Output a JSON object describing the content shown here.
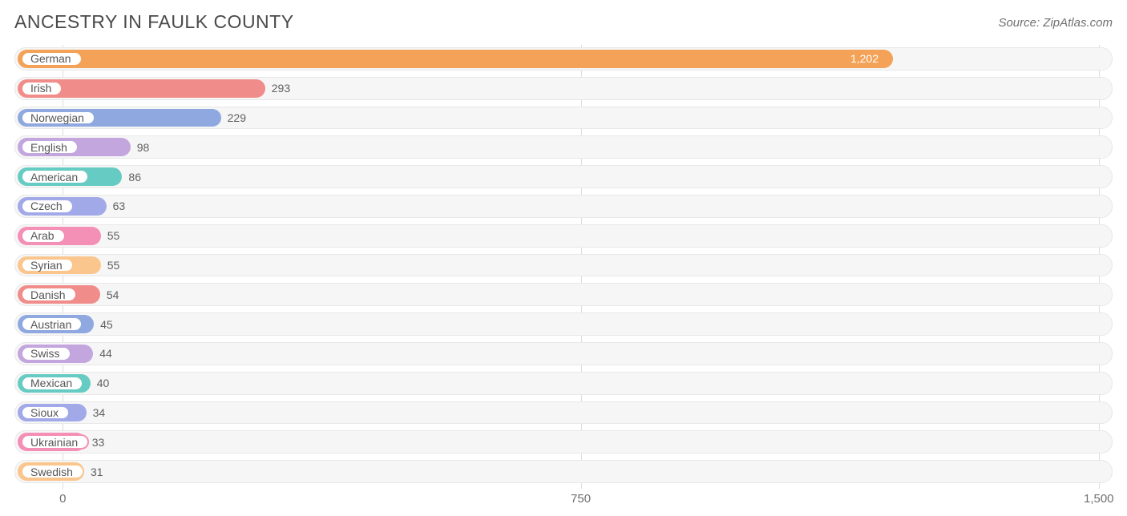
{
  "title": "ANCESTRY IN FAULK COUNTY",
  "source": "Source: ZipAtlas.com",
  "chart": {
    "type": "bar",
    "orientation": "horizontal",
    "xlim": [
      -70,
      1520
    ],
    "xticks": [
      0,
      750,
      1500
    ],
    "xtick_labels": [
      "0",
      "750",
      "1,500"
    ],
    "background_color": "#ffffff",
    "track_color": "#f6f6f6",
    "track_border": "#e8e8e8",
    "grid_color": "#dcdcdc",
    "bar_radius": 12,
    "title_fontsize": 23,
    "title_color": "#4a4a4a",
    "label_fontsize": 14,
    "value_fontsize": 14,
    "axis_fontsize": 15,
    "palette": [
      "#f3a257",
      "#f08d8a",
      "#8fa9e0",
      "#c3a6dd",
      "#66cbc2",
      "#a2a9e8",
      "#f48fb6",
      "#fac68e",
      "#f08d8a",
      "#8fa9e0",
      "#c3a6dd",
      "#66cbc2",
      "#a2a9e8",
      "#f48fb6",
      "#fac68e"
    ],
    "series": [
      {
        "label": "German",
        "value": 1202,
        "display": "1,202",
        "value_inside": true
      },
      {
        "label": "Irish",
        "value": 293,
        "display": "293",
        "value_inside": false
      },
      {
        "label": "Norwegian",
        "value": 229,
        "display": "229",
        "value_inside": false
      },
      {
        "label": "English",
        "value": 98,
        "display": "98",
        "value_inside": false
      },
      {
        "label": "American",
        "value": 86,
        "display": "86",
        "value_inside": false
      },
      {
        "label": "Czech",
        "value": 63,
        "display": "63",
        "value_inside": false
      },
      {
        "label": "Arab",
        "value": 55,
        "display": "55",
        "value_inside": false
      },
      {
        "label": "Syrian",
        "value": 55,
        "display": "55",
        "value_inside": false
      },
      {
        "label": "Danish",
        "value": 54,
        "display": "54",
        "value_inside": false
      },
      {
        "label": "Austrian",
        "value": 45,
        "display": "45",
        "value_inside": false
      },
      {
        "label": "Swiss",
        "value": 44,
        "display": "44",
        "value_inside": false
      },
      {
        "label": "Mexican",
        "value": 40,
        "display": "40",
        "value_inside": false
      },
      {
        "label": "Sioux",
        "value": 34,
        "display": "34",
        "value_inside": false
      },
      {
        "label": "Ukrainian",
        "value": 33,
        "display": "33",
        "value_inside": false
      },
      {
        "label": "Swedish",
        "value": 31,
        "display": "31",
        "value_inside": false
      }
    ]
  }
}
